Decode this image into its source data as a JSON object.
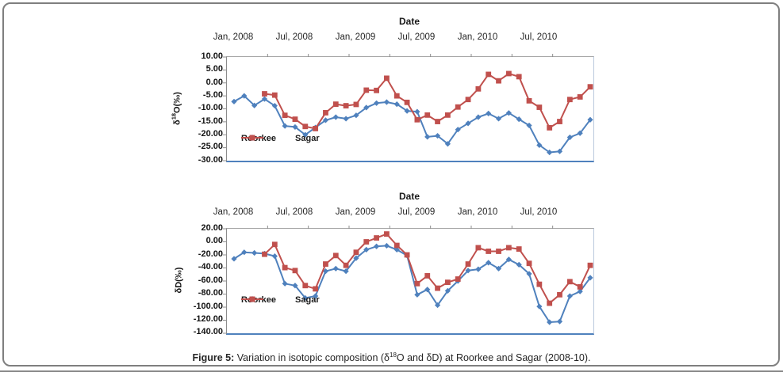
{
  "colors": {
    "roorkee": "#4F81BD",
    "sagar": "#C0504D",
    "plot_bottom_axis": "#4F81BD",
    "tick": "#8c8c8c",
    "frame_border": "#7f7f7f"
  },
  "caption": {
    "bold": "Figure 5:",
    "pre": " Variation in isotopic composition (δ",
    "sup": "18",
    "post": "O and δD) at Roorkee and Sagar (2008-10)."
  },
  "chart_data": [
    {
      "type": "line",
      "title": "Date",
      "xlabel": "Date",
      "ylabel_parts": {
        "base": "δ",
        "sup": "18",
        "rest": "O(‰)"
      },
      "x_tick_labels": [
        "Jan, 2008",
        "Jul, 2008",
        "Jan, 2009",
        "Jul, 2009",
        "Jan, 2010",
        "Jul, 2010"
      ],
      "y_tick_labels": [
        "10.00",
        "5.00",
        "0.00",
        "-5.00",
        "-10.00",
        "-15.00",
        "-20.00",
        "-25.00",
        "-30.00"
      ],
      "ylim": [
        -30,
        10
      ],
      "x_start": "Jan 2008",
      "x_step": "1 month",
      "n_points": 36,
      "legend_position": "inside lower-left",
      "grid": false,
      "series": [
        {
          "name": "Roorkee",
          "marker": "diamond",
          "values": [
            -7.2,
            -5.0,
            -8.7,
            -6.2,
            -8.8,
            -16.6,
            -17.0,
            -20.0,
            -17.2,
            -14.4,
            -13.2,
            -13.8,
            -12.5,
            -9.5,
            -7.8,
            -7.4,
            -8.2,
            -10.8,
            -11.1,
            -20.8,
            -20.4,
            -23.5,
            -18.0,
            -15.6,
            -13.2,
            -11.8,
            -13.8,
            -11.6,
            -14.0,
            -16.4,
            -24.0,
            -26.8,
            -26.4,
            -21.0,
            -19.4,
            -14.2
          ]
        },
        {
          "name": "Sagar",
          "marker": "square",
          "values": [
            null,
            null,
            null,
            -4.2,
            -4.7,
            -12.5,
            -14.0,
            -16.8,
            -17.6,
            -11.5,
            -8.2,
            -8.8,
            -8.3,
            -2.8,
            -2.9,
            1.8,
            -5.0,
            -7.5,
            -14.2,
            -12.4,
            -14.9,
            -12.4,
            -9.3,
            -6.4,
            -2.3,
            3.3,
            0.8,
            3.6,
            2.4,
            -6.9,
            -9.4,
            -17.3,
            -14.9,
            -6.4,
            -5.4,
            -1.5
          ]
        }
      ]
    },
    {
      "type": "line",
      "title": "Date",
      "xlabel": "Date",
      "ylabel_parts": {
        "base": "δ",
        "sup": "",
        "rest": "D(‰)"
      },
      "x_tick_labels": [
        "Jan, 2008",
        "Jul, 2008",
        "Jan, 2009",
        "Jul, 2009",
        "Jan, 2010",
        "Jul, 2010"
      ],
      "y_tick_labels": [
        "20.00",
        "0.00",
        "-20.00",
        "-40.00",
        "-60.00",
        "-80.00",
        "-100.00",
        "-120.00",
        "-140.00"
      ],
      "ylim": [
        -140,
        20
      ],
      "x_start": "Jan 2008",
      "x_step": "1 month",
      "n_points": 36,
      "legend_position": "inside lower-left",
      "grid": false,
      "series": [
        {
          "name": "Roorkee",
          "marker": "diamond",
          "values": [
            -26,
            -16,
            -17,
            -18,
            -22,
            -64,
            -67,
            -86,
            -83,
            -45,
            -41,
            -45,
            -25,
            -12,
            -7,
            -6,
            -12,
            -21,
            -81,
            -73,
            -97,
            -75,
            -60,
            -44,
            -42,
            -32,
            -41,
            -27,
            -35,
            -49,
            -99,
            -123,
            -122,
            -83,
            -76,
            -55
          ]
        },
        {
          "name": "Sagar",
          "marker": "square",
          "values": [
            null,
            null,
            null,
            -19,
            -4,
            -39.5,
            -44,
            -67,
            -72,
            -34,
            -21,
            -36,
            -16,
            0,
            6,
            12,
            -5.5,
            -20,
            -64,
            -52,
            -71,
            -62,
            -57,
            -34,
            -9,
            -14.5,
            -14.5,
            -9,
            -11,
            -33,
            -65,
            -94,
            -81,
            -61,
            -69,
            -36
          ]
        }
      ]
    }
  ]
}
